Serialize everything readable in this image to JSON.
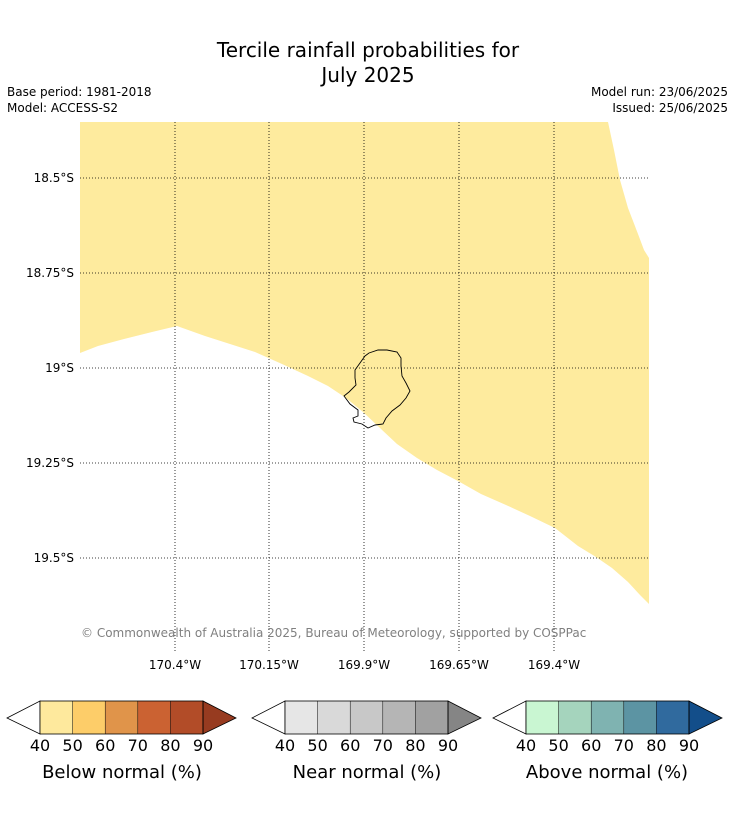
{
  "title_line1": "Tercile rainfall probabilities for",
  "title_line2": "July 2025",
  "base_period": "Base period: 1981-2018",
  "model": "Model: ACCESS-S2",
  "model_run": "Model run: 23/06/2025",
  "issued": "Issued: 25/06/2025",
  "copyright": "© Commonwealth of Australia 2025, Bureau of Meteorology, supported by COSPPac",
  "lat_labels": [
    "18.5°S",
    "18.75°S",
    "19°S",
    "19.25°S",
    "19.5°S"
  ],
  "lon_labels": [
    "170.4°W",
    "170.15°W",
    "169.9°W",
    "169.65°W",
    "169.4°W"
  ],
  "colors": {
    "below": [
      "#fee99d",
      "#fdcd69",
      "#e0944a",
      "#cb6232",
      "#b24c28",
      "#973b20"
    ],
    "near": [
      "#e6e6e6",
      "#d9d9d9",
      "#c8c8c8",
      "#b5b5b5",
      "#a1a1a1",
      "#858585"
    ],
    "above": [
      "#c9f6d2",
      "#a5d4bd",
      "#7fb3b1",
      "#5c94a3",
      "#306a9e",
      "#134e8a"
    ],
    "map_fill": "#feeb9e"
  },
  "legends": [
    {
      "id": "below",
      "label": "Below normal (%)",
      "ticks": [
        "40",
        "50",
        "60",
        "70",
        "80",
        "90"
      ]
    },
    {
      "id": "near",
      "label": "Near normal (%)",
      "ticks": [
        "40",
        "50",
        "60",
        "70",
        "80",
        "90"
      ]
    },
    {
      "id": "above",
      "label": "Above normal (%)",
      "ticks": [
        "40",
        "50",
        "60",
        "70",
        "80",
        "90"
      ]
    }
  ]
}
